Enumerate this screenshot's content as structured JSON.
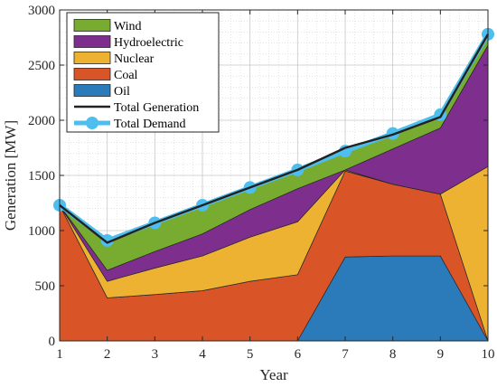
{
  "chart_data": {
    "type": "area",
    "xlabel": "Year",
    "ylabel": "Generation [MW]",
    "x": [
      1,
      2,
      3,
      4,
      5,
      6,
      7,
      8,
      9,
      10
    ],
    "xlim": [
      1,
      10
    ],
    "ylim": [
      0,
      3000
    ],
    "xticks": [
      "1",
      "2",
      "3",
      "4",
      "5",
      "6",
      "7",
      "8",
      "9",
      "10"
    ],
    "yticks": [
      "0",
      "500",
      "1000",
      "1500",
      "2000",
      "2500",
      "3000"
    ],
    "grid": true,
    "minor_grid": true,
    "legend_position": "top-left",
    "stacked_series": [
      {
        "name": "Oil",
        "color": "#2b7bba",
        "values": [
          0,
          0,
          0,
          0,
          0,
          0,
          760,
          770,
          770,
          0
        ]
      },
      {
        "name": "Coal",
        "color": "#d95528",
        "values": [
          1230,
          390,
          420,
          455,
          540,
          600,
          780,
          650,
          560,
          0
        ]
      },
      {
        "name": "Nuclear",
        "color": "#edb232",
        "values": [
          0,
          150,
          240,
          315,
          400,
          480,
          10,
          0,
          0,
          1580
        ]
      },
      {
        "name": "Hydroelectric",
        "color": "#7e2f8e",
        "values": [
          0,
          100,
          150,
          200,
          250,
          300,
          0,
          320,
          600,
          1100
        ]
      },
      {
        "name": "Wind",
        "color": "#77ac30",
        "values": [
          0,
          250,
          260,
          260,
          200,
          170,
          200,
          130,
          100,
          100
        ]
      }
    ],
    "line_series": [
      {
        "name": "Total Generation",
        "color": "#222222",
        "values": [
          1230,
          890,
          1070,
          1230,
          1390,
          1550,
          1750,
          1870,
          2030,
          2780
        ]
      },
      {
        "name": "Total Demand",
        "color": "#4dbeee",
        "values": [
          1230,
          910,
          1070,
          1230,
          1390,
          1550,
          1720,
          1880,
          2050,
          2780
        ]
      }
    ],
    "legend": [
      "Wind",
      "Hydroelectric",
      "Nuclear",
      "Coal",
      "Oil",
      "Total Generation",
      "Total Demand"
    ]
  }
}
